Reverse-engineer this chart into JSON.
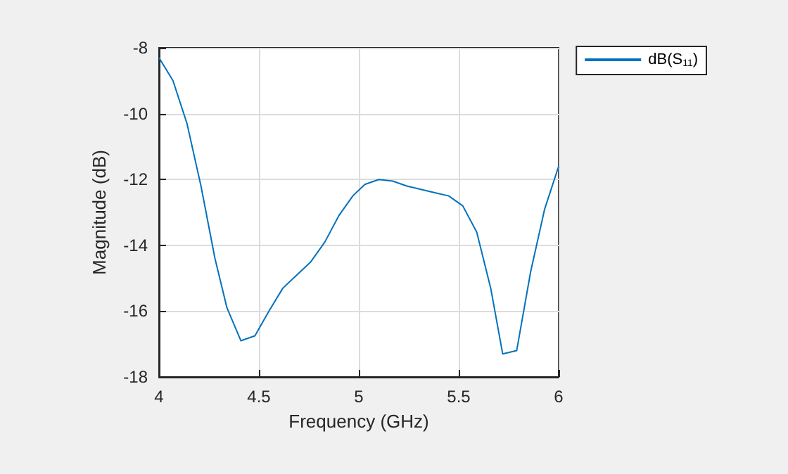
{
  "chart_data": {
    "type": "line",
    "xlabel": "Frequency (GHz)",
    "ylabel": "Magnitude (dB)",
    "x": [
      4,
      4.07,
      4.14,
      4.21,
      4.28,
      4.34,
      4.41,
      4.48,
      4.55,
      4.62,
      4.69,
      4.76,
      4.83,
      4.9,
      4.97,
      5.03,
      5.1,
      5.17,
      5.24,
      5.31,
      5.38,
      5.45,
      5.52,
      5.59,
      5.66,
      5.72,
      5.79,
      5.86,
      5.93,
      6
    ],
    "series": [
      {
        "name": "dB(S$_{11}$)",
        "color": "#0072bd",
        "values": [
          -8.3,
          -9.0,
          -10.3,
          -12.2,
          -14.4,
          -15.9,
          -16.9,
          -16.75,
          -16.0,
          -15.3,
          -14.9,
          -14.5,
          -13.9,
          -13.1,
          -12.5,
          -12.15,
          -12.0,
          -12.05,
          -12.2,
          -12.3,
          -12.4,
          -12.5,
          -12.8,
          -13.6,
          -15.3,
          -17.3,
          -17.2,
          -14.8,
          -12.9,
          -11.6
        ]
      }
    ],
    "xlim": [
      4,
      6
    ],
    "xticks": [
      4,
      4.5,
      5,
      5.5,
      6
    ],
    "ylim": [
      -18,
      -8
    ],
    "yticks": [
      -18,
      -16,
      -14,
      -12,
      -10,
      -8
    ],
    "grid": true,
    "legend": "top right",
    "marker": "none",
    "line_style": "solid"
  }
}
